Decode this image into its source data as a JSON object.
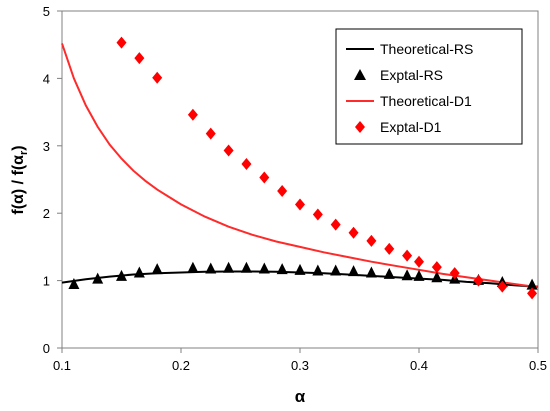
{
  "chart_data": {
    "type": "scatter",
    "xlabel": "α",
    "ylabel_main": "f(α) / f(α",
    "ylabel_sub": "r",
    "ylabel_close": ")",
    "xlim": [
      0.1,
      0.5
    ],
    "ylim": [
      0,
      5
    ],
    "x_ticks": [
      0.1,
      0.2,
      0.3,
      0.4,
      0.5
    ],
    "x_tick_labels": [
      "0.1",
      "0.2",
      "0.3",
      "0.4",
      "0.5"
    ],
    "y_ticks": [
      0,
      1,
      2,
      3,
      4,
      5
    ],
    "y_tick_labels": [
      "0",
      "1",
      "2",
      "3",
      "4",
      "5"
    ],
    "grid": false,
    "legend_position": "top-right",
    "series": [
      {
        "name": "Theoretical-RS",
        "kind": "line",
        "color": "#000000",
        "x": [
          0.1,
          0.12,
          0.14,
          0.16,
          0.18,
          0.2,
          0.22,
          0.24,
          0.26,
          0.28,
          0.3,
          0.32,
          0.34,
          0.36,
          0.38,
          0.4,
          0.42,
          0.44,
          0.46,
          0.48,
          0.5
        ],
        "y": [
          0.97,
          1.02,
          1.06,
          1.09,
          1.11,
          1.12,
          1.13,
          1.135,
          1.135,
          1.13,
          1.12,
          1.11,
          1.09,
          1.07,
          1.05,
          1.03,
          1.01,
          0.98,
          0.96,
          0.93,
          0.91
        ]
      },
      {
        "name": "Exptal-RS",
        "kind": "marker",
        "marker": "triangle",
        "color": "#000000",
        "x": [
          0.11,
          0.13,
          0.15,
          0.165,
          0.18,
          0.21,
          0.225,
          0.24,
          0.255,
          0.27,
          0.285,
          0.3,
          0.315,
          0.33,
          0.345,
          0.36,
          0.375,
          0.39,
          0.4,
          0.415,
          0.43,
          0.45,
          0.47,
          0.495
        ],
        "y": [
          0.95,
          1.03,
          1.07,
          1.12,
          1.17,
          1.19,
          1.18,
          1.19,
          1.19,
          1.18,
          1.17,
          1.16,
          1.15,
          1.15,
          1.14,
          1.12,
          1.1,
          1.08,
          1.07,
          1.05,
          1.03,
          1.01,
          0.98,
          0.94
        ]
      },
      {
        "name": "Theoretical-D1",
        "kind": "line",
        "color": "#ff2a2a",
        "x": [
          0.1,
          0.11,
          0.12,
          0.13,
          0.14,
          0.15,
          0.16,
          0.17,
          0.18,
          0.19,
          0.2,
          0.22,
          0.24,
          0.26,
          0.28,
          0.3,
          0.32,
          0.34,
          0.36,
          0.38,
          0.4,
          0.42,
          0.44,
          0.46,
          0.48,
          0.5
        ],
        "y": [
          4.52,
          4.0,
          3.6,
          3.28,
          3.02,
          2.81,
          2.63,
          2.48,
          2.35,
          2.24,
          2.13,
          1.95,
          1.8,
          1.68,
          1.58,
          1.5,
          1.42,
          1.35,
          1.28,
          1.22,
          1.16,
          1.1,
          1.05,
          1.0,
          0.95,
          0.9
        ]
      },
      {
        "name": "Exptal-D1",
        "kind": "marker",
        "marker": "diamond",
        "color": "#ff0000",
        "x": [
          0.15,
          0.165,
          0.18,
          0.21,
          0.225,
          0.24,
          0.255,
          0.27,
          0.285,
          0.3,
          0.315,
          0.33,
          0.345,
          0.36,
          0.375,
          0.39,
          0.4,
          0.415,
          0.43,
          0.45,
          0.47,
          0.495
        ],
        "y": [
          4.53,
          4.3,
          4.01,
          3.46,
          3.18,
          2.93,
          2.73,
          2.53,
          2.33,
          2.13,
          1.98,
          1.83,
          1.71,
          1.59,
          1.47,
          1.37,
          1.28,
          1.2,
          1.11,
          1.0,
          0.91,
          0.81
        ]
      }
    ]
  }
}
